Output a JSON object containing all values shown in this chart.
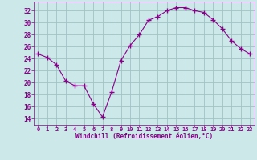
{
  "x": [
    0,
    1,
    2,
    3,
    4,
    5,
    6,
    7,
    8,
    9,
    10,
    11,
    12,
    13,
    14,
    15,
    16,
    17,
    18,
    19,
    20,
    21,
    22,
    23
  ],
  "y": [
    24.8,
    24.2,
    23.0,
    20.3,
    19.5,
    19.5,
    16.5,
    14.3,
    18.5,
    23.7,
    26.2,
    28.0,
    30.4,
    31.0,
    32.0,
    32.5,
    32.5,
    32.0,
    31.7,
    30.5,
    29.0,
    27.0,
    25.7,
    24.8
  ],
  "line_color": "#8B008B",
  "marker": "+",
  "marker_size": 4,
  "bg_color": "#cce8e8",
  "grid_color": "#9ec4c4",
  "xlabel": "Windchill (Refroidissement éolien,°C)",
  "xlabel_color": "#8B008B",
  "tick_color": "#8B008B",
  "ylim": [
    13,
    33.5
  ],
  "xlim": [
    -0.5,
    23.5
  ],
  "yticks": [
    14,
    16,
    18,
    20,
    22,
    24,
    26,
    28,
    30,
    32
  ],
  "xticks": [
    0,
    1,
    2,
    3,
    4,
    5,
    6,
    7,
    8,
    9,
    10,
    11,
    12,
    13,
    14,
    15,
    16,
    17,
    18,
    19,
    20,
    21,
    22,
    23
  ]
}
